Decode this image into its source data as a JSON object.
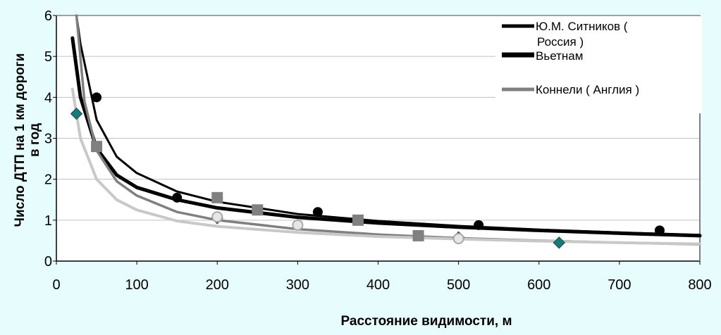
{
  "chart_data": {
    "type": "scatter",
    "xlabel": "Расстояние видимости, м",
    "ylabel_lines": [
      "Число ДТП на 1 км дороги",
      "в год"
    ],
    "xlim": [
      0,
      800
    ],
    "ylim": [
      0,
      6
    ],
    "x_ticks": [
      0,
      100,
      200,
      300,
      400,
      500,
      600,
      700,
      800
    ],
    "y_ticks": [
      0,
      1,
      2,
      3,
      4,
      5,
      6
    ],
    "grid": true,
    "legend_position": "top-right",
    "series": [
      {
        "name": "Ю.М. Ситников ( Россия )",
        "color": "#000000",
        "marker": "circle",
        "points": [
          [
            50,
            4.0
          ],
          [
            150,
            1.55
          ],
          [
            325,
            1.2
          ],
          [
            525,
            0.88
          ],
          [
            750,
            0.75
          ]
        ],
        "trend": [
          [
            20,
            5.45
          ],
          [
            30,
            4.0
          ],
          [
            50,
            2.75
          ],
          [
            75,
            2.1
          ],
          [
            100,
            1.8
          ],
          [
            150,
            1.5
          ],
          [
            200,
            1.3
          ],
          [
            300,
            1.07
          ],
          [
            400,
            0.93
          ],
          [
            500,
            0.83
          ],
          [
            600,
            0.75
          ],
          [
            700,
            0.68
          ],
          [
            800,
            0.62
          ]
        ]
      },
      {
        "name": "Вьетнам",
        "color": "#000000",
        "marker": "square",
        "points": [
          [
            50,
            2.8
          ],
          [
            200,
            1.55
          ],
          [
            250,
            1.25
          ],
          [
            375,
            1.0
          ],
          [
            450,
            0.62
          ]
        ],
        "trend": [
          [
            25,
            6.0
          ],
          [
            30,
            5.3
          ],
          [
            50,
            3.45
          ],
          [
            75,
            2.55
          ],
          [
            100,
            2.15
          ],
          [
            150,
            1.7
          ],
          [
            200,
            1.45
          ],
          [
            300,
            1.15
          ],
          [
            400,
            0.98
          ],
          [
            500,
            0.86
          ],
          [
            600,
            0.77
          ],
          [
            700,
            0.7
          ],
          [
            800,
            0.64
          ]
        ]
      },
      {
        "name": "Коннели ( Англия )",
        "color": "#808080",
        "marker": "diamond",
        "points": [
          [
            25,
            3.6
          ],
          [
            200,
            1.05
          ],
          [
            500,
            0.58
          ],
          [
            625,
            0.45
          ]
        ],
        "trend": [
          [
            25,
            6.0
          ],
          [
            35,
            3.9
          ],
          [
            50,
            2.7
          ],
          [
            75,
            1.95
          ],
          [
            100,
            1.6
          ],
          [
            150,
            1.2
          ],
          [
            200,
            1.0
          ],
          [
            300,
            0.78
          ],
          [
            400,
            0.65
          ],
          [
            500,
            0.56
          ],
          [
            600,
            0.5
          ],
          [
            700,
            0.45
          ],
          [
            800,
            0.41
          ]
        ]
      },
      {
        "name": "",
        "color": "#c8c8c8",
        "marker": "circle-open",
        "points": [
          [
            200,
            1.08
          ],
          [
            300,
            0.88
          ],
          [
            500,
            0.55
          ]
        ],
        "trend": [
          [
            20,
            4.2
          ],
          [
            30,
            3.0
          ],
          [
            50,
            2.0
          ],
          [
            75,
            1.5
          ],
          [
            100,
            1.25
          ],
          [
            150,
            0.98
          ],
          [
            200,
            0.85
          ],
          [
            300,
            0.7
          ],
          [
            400,
            0.6
          ],
          [
            500,
            0.54
          ],
          [
            600,
            0.49
          ],
          [
            700,
            0.45
          ],
          [
            800,
            0.42
          ]
        ]
      }
    ]
  }
}
